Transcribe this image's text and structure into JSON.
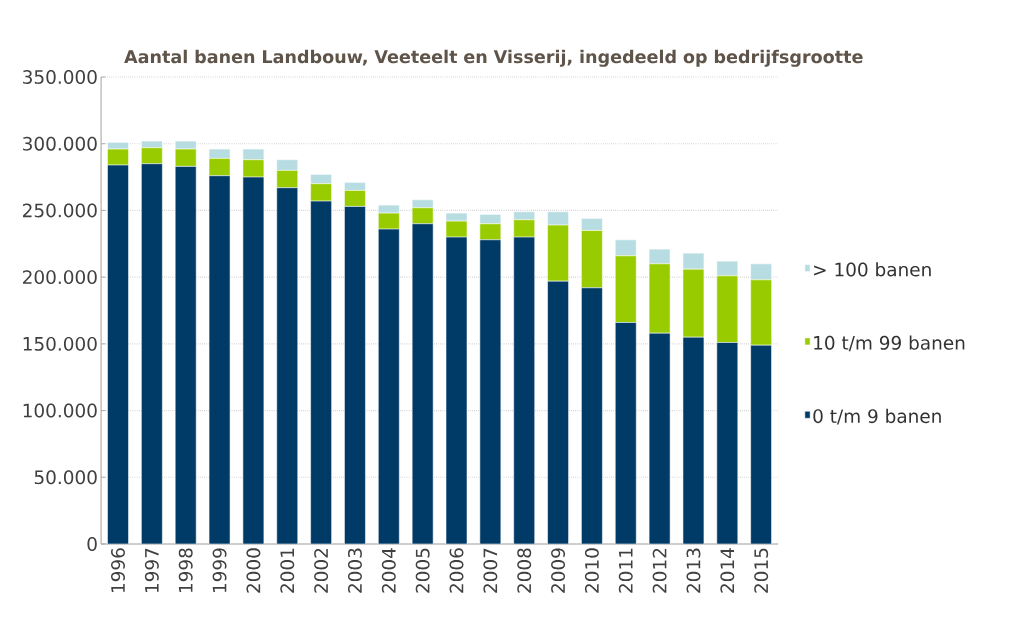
{
  "chart_data": {
    "type": "bar",
    "stacked": true,
    "title": "Aantal banen Landbouw, Veeteelt en Visserij, ingedeeld op bedrijfsgrootte",
    "categories": [
      "1996",
      "1997",
      "1998",
      "1999",
      "2000",
      "2001",
      "2002",
      "2003",
      "2004",
      "2005",
      "2006",
      "2007",
      "2008",
      "2009",
      "2010",
      "2011",
      "2012",
      "2013",
      "2014",
      "2015"
    ],
    "series": [
      {
        "name": "0 t/m 9 banen",
        "color": "#003a66",
        "values": [
          284000,
          285000,
          283000,
          276000,
          275000,
          267000,
          257000,
          253000,
          236000,
          240000,
          230000,
          228000,
          230000,
          197000,
          192000,
          166000,
          158000,
          155000,
          151000,
          149000
        ]
      },
      {
        "name": "10 t/m 99 banen",
        "color": "#99cc00",
        "values": [
          12000,
          12000,
          13000,
          13000,
          13000,
          13000,
          13000,
          12000,
          12000,
          12000,
          12000,
          12000,
          13000,
          42000,
          43000,
          50000,
          52000,
          51000,
          50000,
          49000
        ]
      },
      {
        "name": "> 100 banen",
        "color": "#b7dde3",
        "values": [
          5000,
          5000,
          6000,
          7000,
          8000,
          8000,
          7000,
          6000,
          6000,
          6000,
          6000,
          7000,
          6000,
          10000,
          9000,
          12000,
          11000,
          12000,
          11000,
          12000
        ]
      }
    ],
    "ylim": [
      0,
      350000
    ],
    "yticks": [
      0,
      {
        "value": 50000,
        "label": "50.000"
      },
      {
        "value": 100000,
        "label": "100.000"
      },
      {
        "value": 150000,
        "label": "150.000"
      },
      {
        "value": 200000,
        "label": "200.000"
      },
      {
        "value": 250000,
        "label": "250.000"
      },
      {
        "value": 300000,
        "label": "300.000"
      },
      {
        "value": 350000,
        "label": "350.000"
      }
    ],
    "grid": "y",
    "legend": "right"
  }
}
